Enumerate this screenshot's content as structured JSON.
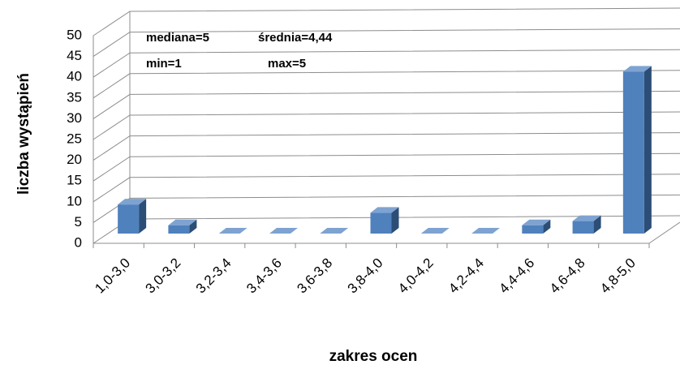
{
  "chart_data": {
    "type": "bar3d",
    "categories": [
      "1,0-3,0",
      "3,0-3,2",
      "3,2-3,4",
      "3,4-3,6",
      "3,6-3,8",
      "3,8-4,0",
      "4,0-4,2",
      "4,2-4,4",
      "4,4-4,6",
      "4,6-4,8",
      "4,8-5,0"
    ],
    "values": [
      7,
      2,
      0,
      0,
      0,
      5,
      0,
      0,
      2,
      3,
      39
    ],
    "color": "#4f81bd",
    "ylim": [
      0,
      50
    ],
    "yticks": [
      0,
      5,
      10,
      15,
      20,
      25,
      30,
      35,
      40,
      45,
      50
    ],
    "grid": true,
    "x_label": "zakres ocen",
    "y_label": "liczba wystąpień",
    "annotations": [
      "mediana=5",
      "średnia=4,44",
      "min=1",
      "max=5"
    ]
  }
}
